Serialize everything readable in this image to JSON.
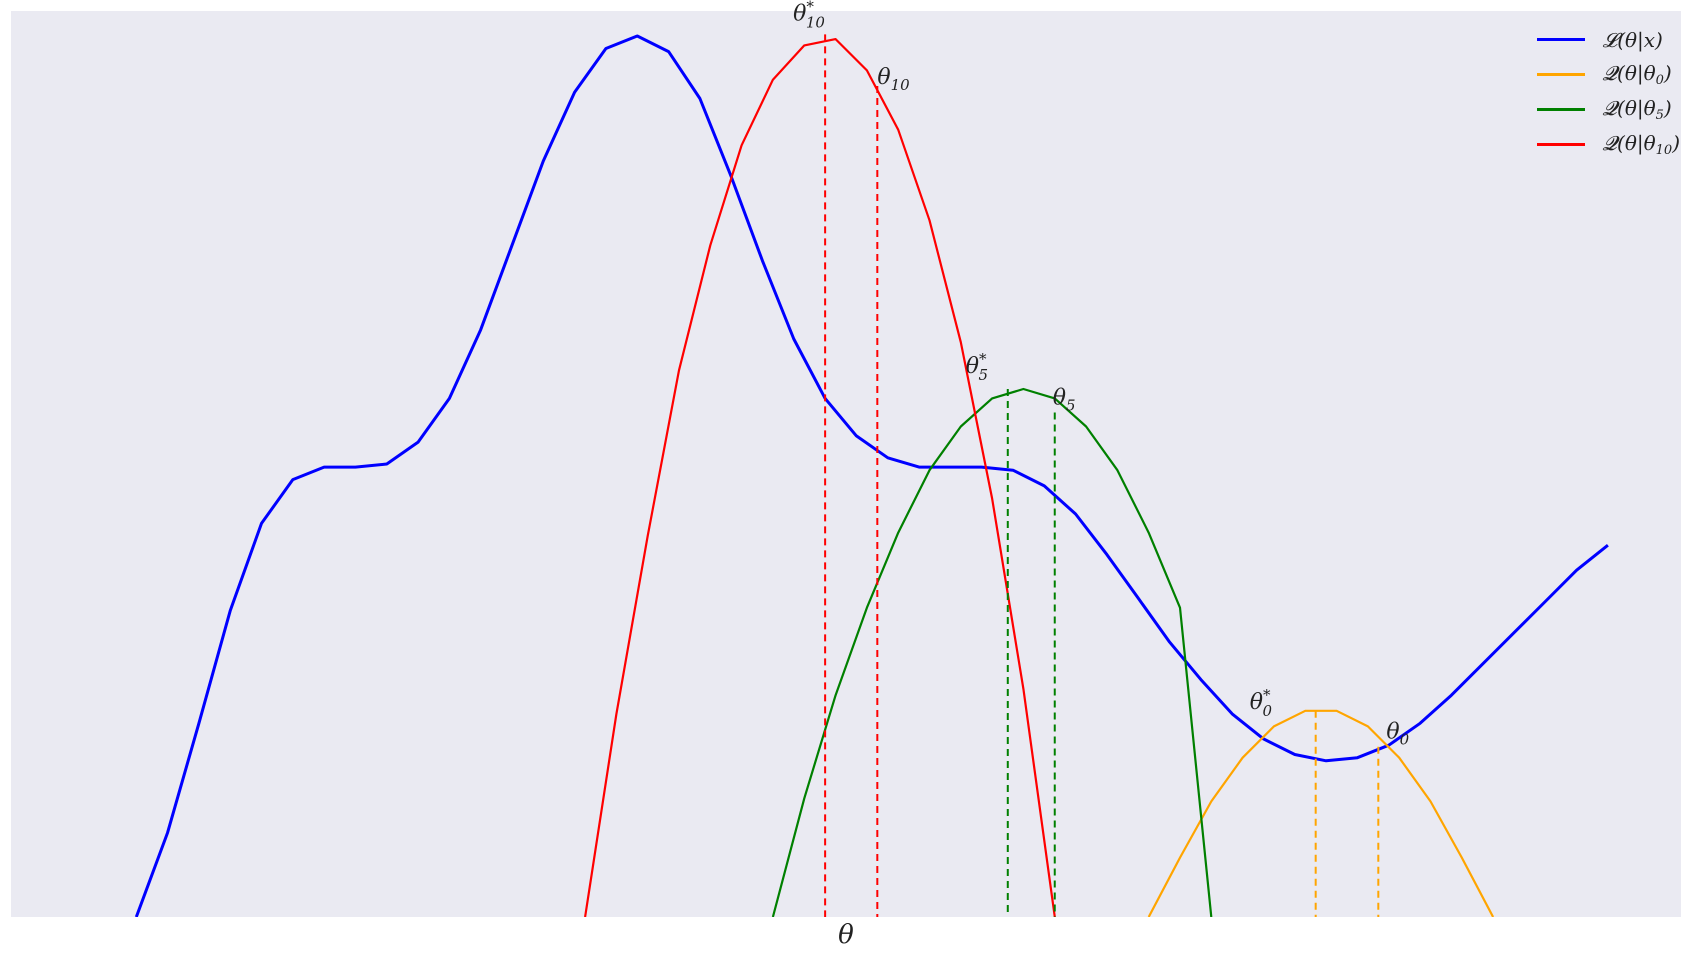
{
  "chart_data": {
    "type": "line",
    "xlabel": "θ",
    "ylabel": "",
    "title": "",
    "xlim": [
      -1.0,
      15.0
    ],
    "ylim": [
      -1.6,
      1.3
    ],
    "grid": false,
    "background": "#eaeaf2",
    "legend_placement": "top-right",
    "series": [
      {
        "name": "𝓛(θ|x)",
        "legend_main": "𝓛(θ|x)",
        "legend_sub": "",
        "legend_tail": "",
        "color": "#0000ff",
        "x": [
          0.2,
          0.5,
          0.8,
          1.1,
          1.4,
          1.7,
          2.0,
          2.3,
          2.6,
          2.9,
          3.2,
          3.5,
          3.8,
          4.1,
          4.4,
          4.7,
          5.0,
          5.3,
          5.6,
          5.9,
          6.2,
          6.5,
          6.8,
          7.1,
          7.4,
          7.7,
          8.0,
          8.3,
          8.6,
          8.9,
          9.2,
          9.5,
          9.8,
          10.1,
          10.4,
          10.7,
          11.0,
          11.3,
          11.6,
          11.9,
          12.2,
          12.5,
          12.8,
          13.1,
          13.4,
          13.7,
          14.0,
          14.3
        ],
        "y": [
          -1.6,
          -1.33,
          -0.98,
          -0.62,
          -0.34,
          -0.2,
          -0.16,
          -0.16,
          -0.15,
          -0.08,
          0.06,
          0.28,
          0.55,
          0.82,
          1.04,
          1.18,
          1.22,
          1.17,
          1.02,
          0.77,
          0.5,
          0.25,
          0.06,
          -0.06,
          -0.13,
          -0.16,
          -0.16,
          -0.16,
          -0.17,
          -0.22,
          -0.31,
          -0.44,
          -0.58,
          -0.72,
          -0.84,
          -0.95,
          -1.03,
          -1.08,
          -1.1,
          -1.09,
          -1.05,
          -0.98,
          -0.89,
          -0.79,
          -0.69,
          -0.59,
          -0.49,
          -0.41
        ]
      },
      {
        "name": "𝓠(θ|θ0)",
        "legend_main": "𝓠(θ|θ",
        "legend_sub": "0",
        "legend_tail": ")",
        "color": "#ffa500",
        "x": [
          9.9,
          10.2,
          10.5,
          10.8,
          11.1,
          11.4,
          11.7,
          12.0,
          12.3,
          12.6,
          12.9,
          13.2
        ],
        "y": [
          -1.6,
          -1.41,
          -1.23,
          -1.09,
          -0.99,
          -0.94,
          -0.94,
          -0.99,
          -1.09,
          -1.23,
          -1.41,
          -1.6
        ]
      },
      {
        "name": "𝓠(θ|θ5)",
        "legend_main": "𝓠(θ|θ",
        "legend_sub": "5",
        "legend_tail": ")",
        "color": "#008000",
        "x": [
          6.3,
          6.6,
          6.9,
          7.2,
          7.5,
          7.8,
          8.1,
          8.4,
          8.7,
          9.0,
          9.3,
          9.6,
          9.9,
          10.2,
          10.5
        ],
        "y": [
          -1.6,
          -1.22,
          -0.89,
          -0.61,
          -0.37,
          -0.17,
          -0.03,
          0.06,
          0.09,
          0.06,
          -0.03,
          -0.17,
          -0.37,
          -0.61,
          -1.6
        ]
      },
      {
        "name": "𝓠(θ|θ10)",
        "legend_main": "𝓠(θ|θ",
        "legend_sub": "10",
        "legend_tail": ")",
        "color": "#ff0000",
        "x": [
          4.5,
          4.8,
          5.1,
          5.4,
          5.7,
          6.0,
          6.3,
          6.6,
          6.9,
          7.2,
          7.5,
          7.8,
          8.1,
          8.4,
          8.7,
          9.0
        ],
        "y": [
          -1.6,
          -0.95,
          -0.38,
          0.15,
          0.55,
          0.87,
          1.08,
          1.19,
          1.21,
          1.11,
          0.92,
          0.63,
          0.24,
          -0.26,
          -0.87,
          -1.6
        ]
      }
    ],
    "annotations": [
      {
        "main": "θ",
        "sub": "10",
        "sup": "*",
        "x": 6.8,
        "y": 1.225,
        "line_color": "#ff0000",
        "text_dx": -32,
        "text_dy": -14
      },
      {
        "main": "θ",
        "sub": "10",
        "sup": "",
        "x": 7.3,
        "y": 1.06,
        "line_color": "#ff0000",
        "text_dx": 0,
        "text_dy": -2
      },
      {
        "main": "θ",
        "sub": "5",
        "sup": "*",
        "x": 8.55,
        "y": 0.09,
        "line_color": "#008000",
        "text_dx": -42,
        "text_dy": -16
      },
      {
        "main": "θ",
        "sub": "5",
        "sup": "",
        "x": 9.0,
        "y": 0.015,
        "line_color": "#008000",
        "text_dx": -2,
        "text_dy": -8
      },
      {
        "main": "θ",
        "sub": "0",
        "sup": "*",
        "x": 11.5,
        "y": -0.94,
        "line_color": "#ffa500",
        "text_dx": -66,
        "text_dy": -2
      },
      {
        "main": "θ",
        "sub": "0",
        "sup": "",
        "x": 12.1,
        "y": -1.055,
        "line_color": "#ffa500",
        "text_dx": 8,
        "text_dy": -8
      }
    ]
  }
}
